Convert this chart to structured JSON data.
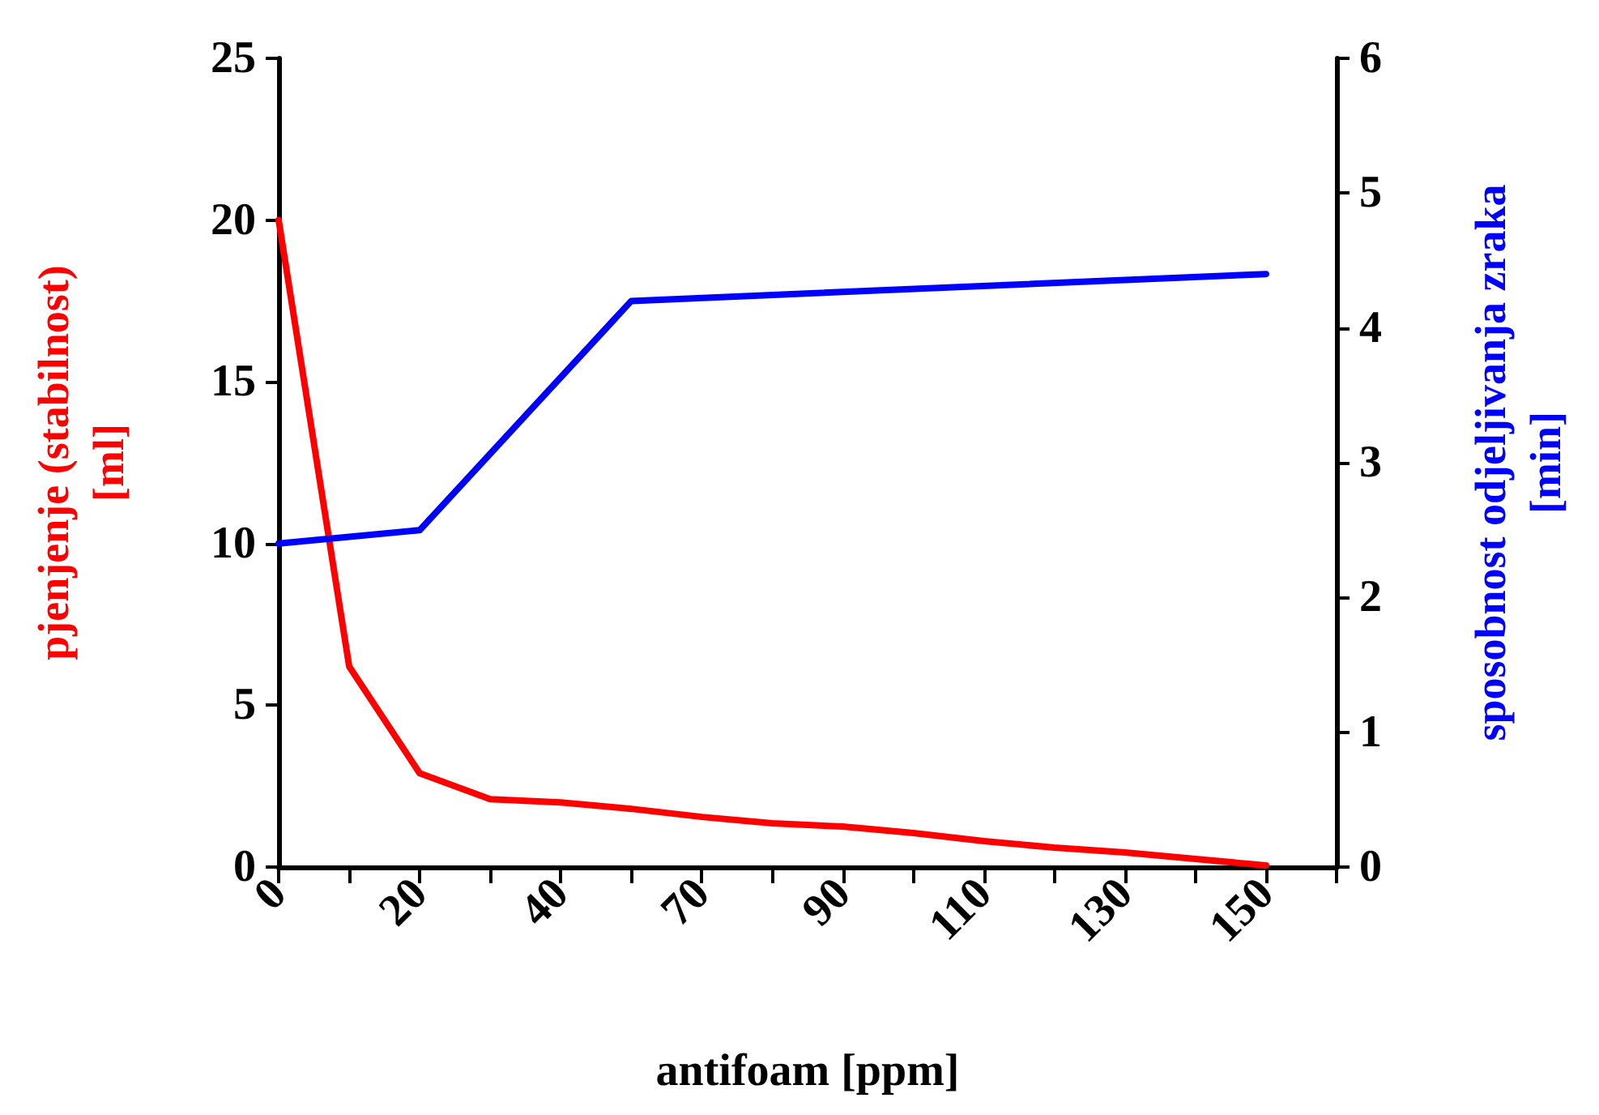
{
  "chart_data": {
    "type": "line",
    "xlabel": "antifoam [ppm]",
    "ylabel": "pjenjenje (stabilnost)\n[ml]",
    "y2label": "sposobnost odjeljivanja zraka\n[min]",
    "categories": [
      "0",
      null,
      "20",
      null,
      "40",
      null,
      "70",
      null,
      "90",
      null,
      "110",
      null,
      "130",
      null,
      "150",
      null
    ],
    "series": [
      {
        "color": "#ff0000",
        "values": [
          20,
          6.2,
          2.9,
          2.1,
          2.0,
          1.8,
          1.55,
          1.35,
          1.25,
          1.05,
          0.8,
          0.6,
          0.45,
          0.25,
          0.05,
          null
        ]
      },
      {
        "color": "#0000ff",
        "axis": "y2",
        "values": [
          2.4,
          null,
          2.5,
          null,
          null,
          4.2,
          null,
          null,
          null,
          null,
          null,
          null,
          null,
          null,
          4.4,
          null
        ]
      }
    ],
    "ylim": [
      0,
      25
    ],
    "yticks": [
      0,
      5,
      10,
      15,
      20,
      25
    ],
    "y2lim": [
      0,
      6
    ],
    "y2ticks": [
      0,
      1,
      2,
      3,
      4,
      5,
      6
    ],
    "grid": false,
    "marker": "none",
    "line_style": "solid"
  }
}
